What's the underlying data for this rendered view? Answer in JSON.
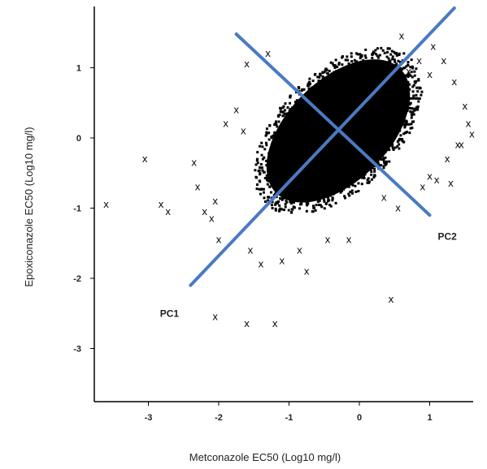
{
  "chart_data": {
    "type": "scatter",
    "title": "",
    "xlabel": "Metconazole EC50 (Log10 mg/l)",
    "ylabel": "Epoxiconazole EC50 (Log10 mg/l)",
    "xlim": [
      -3.8,
      1.7
    ],
    "ylim": [
      -3.75,
      1.85
    ],
    "x_ticks": [
      -3,
      -2,
      -1,
      0,
      1
    ],
    "y_ticks": [
      1,
      0,
      -1,
      -2,
      -3
    ],
    "grid": false,
    "marker": "x",
    "dense_cloud": {
      "center": [
        -0.3,
        0.1
      ],
      "semi_major": 1.25,
      "semi_minor": 0.72,
      "angle_deg": 45
    },
    "outliers": [
      [
        -3.6,
        -0.95
      ],
      [
        -3.05,
        -0.3
      ],
      [
        -2.82,
        -0.95
      ],
      [
        -2.72,
        -1.05
      ],
      [
        -2.35,
        -0.35
      ],
      [
        -2.3,
        -0.7
      ],
      [
        -2.2,
        -1.05
      ],
      [
        -2.1,
        -1.15
      ],
      [
        -2.05,
        -0.9
      ],
      [
        -2.0,
        -1.45
      ],
      [
        -2.05,
        -2.55
      ],
      [
        -1.6,
        -2.65
      ],
      [
        -1.2,
        -2.65
      ],
      [
        -1.55,
        -1.6
      ],
      [
        -1.4,
        -1.8
      ],
      [
        -1.1,
        -1.75
      ],
      [
        -0.85,
        -1.6
      ],
      [
        -0.75,
        -1.9
      ],
      [
        -1.75,
        0.4
      ],
      [
        -1.9,
        0.2
      ],
      [
        -1.65,
        0.1
      ],
      [
        -1.6,
        1.05
      ],
      [
        -1.3,
        1.2
      ],
      [
        -0.45,
        -1.45
      ],
      [
        -0.15,
        -1.45
      ],
      [
        0.45,
        -2.3
      ],
      [
        0.55,
        -1.0
      ],
      [
        0.35,
        -0.85
      ],
      [
        0.85,
        1.1
      ],
      [
        1.05,
        1.3
      ],
      [
        1.2,
        1.1
      ],
      [
        1.35,
        0.8
      ],
      [
        1.5,
        0.45
      ],
      [
        1.55,
        0.2
      ],
      [
        1.6,
        0.05
      ],
      [
        1.4,
        -0.1
      ],
      [
        1.25,
        -0.3
      ],
      [
        1.1,
        -0.6
      ],
      [
        1.0,
        -0.55
      ],
      [
        0.9,
        -0.7
      ],
      [
        0.7,
        0.95
      ],
      [
        1.3,
        -0.65
      ],
      [
        1.45,
        -0.1
      ],
      [
        1.0,
        0.9
      ],
      [
        0.6,
        1.45
      ]
    ],
    "principal_components": [
      {
        "name": "PC1",
        "from": [
          -2.4,
          -2.1
        ],
        "to": [
          1.35,
          1.85
        ]
      },
      {
        "name": "PC2",
        "from": [
          -1.75,
          1.48
        ],
        "to": [
          1.0,
          -1.1
        ]
      }
    ],
    "line_color": "#4a7ac2"
  }
}
